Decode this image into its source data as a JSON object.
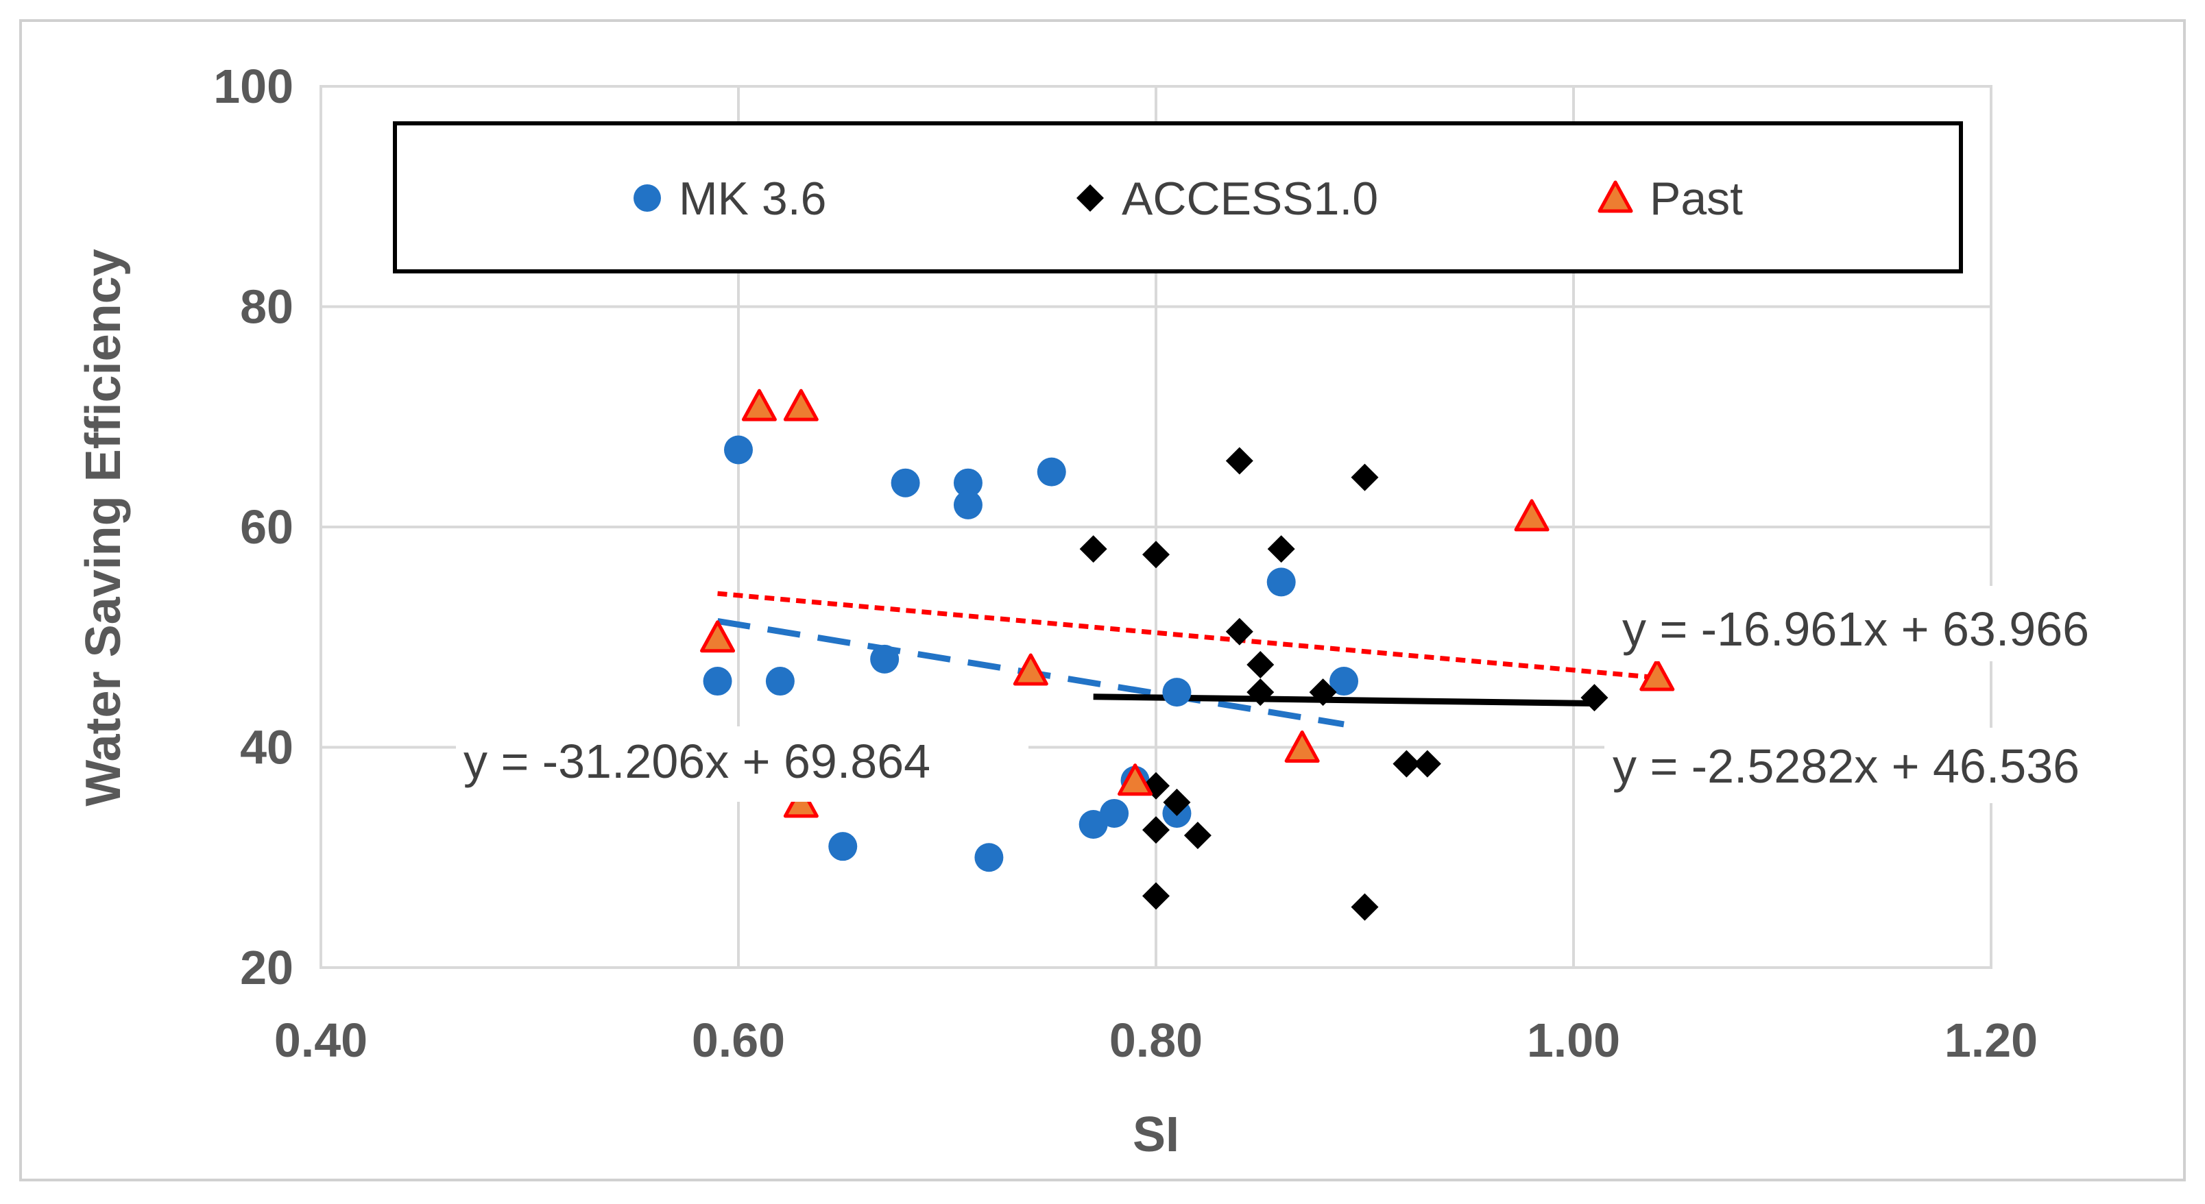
{
  "chart_data": {
    "type": "scatter",
    "title": "",
    "xlabel": "SI",
    "ylabel": "Water Saving Efficiency",
    "xlim": [
      0.4,
      1.2
    ],
    "ylim": [
      20,
      100
    ],
    "x_ticks": [
      0.4,
      0.6,
      0.8,
      1.0,
      1.2
    ],
    "x_tick_labels": [
      "0.40",
      "0.60",
      "0.80",
      "1.00",
      "1.20"
    ],
    "y_ticks": [
      20,
      40,
      60,
      80,
      100
    ],
    "y_tick_labels": [
      "20",
      "40",
      "60",
      "80",
      "100"
    ],
    "grid": true,
    "legend_position": "top",
    "series": [
      {
        "name": "MK 3.6",
        "marker": "circle",
        "color": "#2273C6",
        "points": [
          [
            0.59,
            46
          ],
          [
            0.6,
            67
          ],
          [
            0.62,
            46
          ],
          [
            0.65,
            31
          ],
          [
            0.67,
            48
          ],
          [
            0.68,
            64
          ],
          [
            0.71,
            64
          ],
          [
            0.71,
            62
          ],
          [
            0.72,
            30
          ],
          [
            0.75,
            65
          ],
          [
            0.77,
            33
          ],
          [
            0.78,
            34
          ],
          [
            0.79,
            37
          ],
          [
            0.81,
            45
          ],
          [
            0.81,
            34
          ],
          [
            0.86,
            55
          ],
          [
            0.89,
            46
          ]
        ],
        "trendline": {
          "style": "long-dash",
          "x_range": [
            0.59,
            0.89
          ],
          "equation": "y = -31.206x + 69.864",
          "slope": -31.206,
          "intercept": 69.864
        }
      },
      {
        "name": "ACCESS1.0",
        "marker": "diamond",
        "color": "#000000",
        "points": [
          [
            0.77,
            58
          ],
          [
            0.8,
            57.5
          ],
          [
            0.8,
            36.5
          ],
          [
            0.8,
            32.5
          ],
          [
            0.8,
            26.5
          ],
          [
            0.81,
            35
          ],
          [
            0.82,
            32
          ],
          [
            0.84,
            66
          ],
          [
            0.84,
            50.5
          ],
          [
            0.85,
            47.5
          ],
          [
            0.85,
            45
          ],
          [
            0.86,
            58
          ],
          [
            0.88,
            45
          ],
          [
            0.9,
            64.5
          ],
          [
            0.9,
            25.5
          ],
          [
            0.92,
            38.5
          ],
          [
            0.93,
            38.5
          ],
          [
            1.01,
            44.5
          ]
        ],
        "trendline": {
          "style": "solid",
          "x_range": [
            0.77,
            1.01
          ],
          "equation": "y = -2.5282x + 46.536",
          "slope": -2.5282,
          "intercept": 46.536
        }
      },
      {
        "name": "Past",
        "marker": "triangle",
        "color": "#FF0000",
        "fill": "#ED7D31",
        "points": [
          [
            0.59,
            50
          ],
          [
            0.61,
            71
          ],
          [
            0.63,
            71
          ],
          [
            0.63,
            35
          ],
          [
            0.74,
            47
          ],
          [
            0.79,
            37
          ],
          [
            0.87,
            40
          ],
          [
            0.98,
            61
          ],
          [
            1.04,
            46.5
          ]
        ],
        "trendline": {
          "style": "short-dash",
          "x_range": [
            0.59,
            1.04
          ],
          "equation": "y = -16.961x + 63.966",
          "slope": -16.961,
          "intercept": 63.966
        }
      }
    ]
  }
}
